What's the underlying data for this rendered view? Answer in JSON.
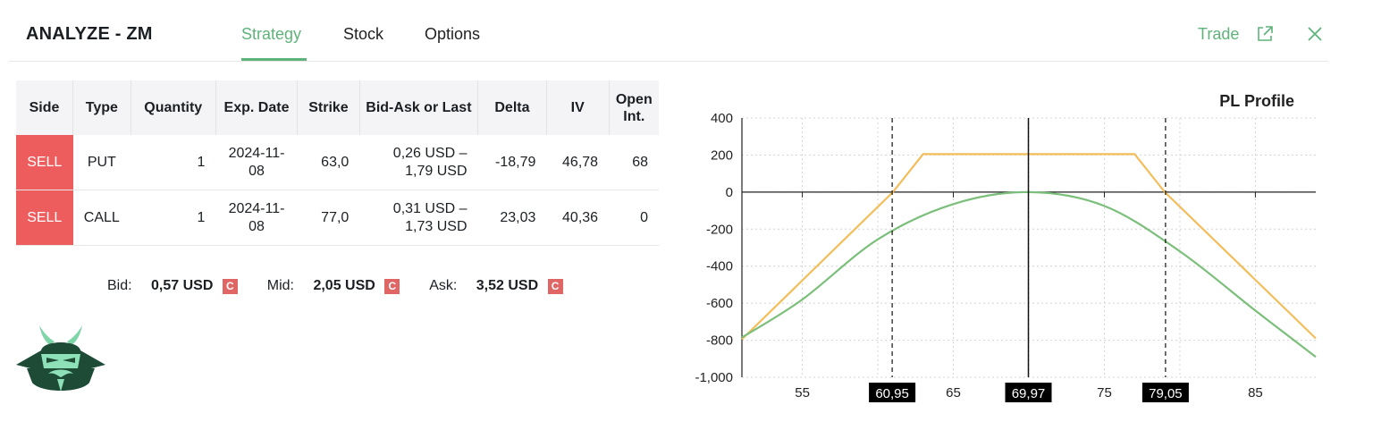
{
  "header": {
    "title": "ANALYZE - ZM",
    "tabs": [
      {
        "label": "Strategy",
        "active": true
      },
      {
        "label": "Stock",
        "active": false
      },
      {
        "label": "Options",
        "active": false
      }
    ],
    "trade_label": "Trade",
    "accent_color": "#5fb37a"
  },
  "table": {
    "columns": [
      "Side",
      "Type",
      "Quantity",
      "Exp. Date",
      "Strike",
      "Bid-Ask or Last",
      "Delta",
      "IV",
      "Open Int."
    ],
    "rows": [
      {
        "side": "SELL",
        "type": "PUT",
        "quantity": "1",
        "exp_date": "2024-11-08",
        "strike": "63,0",
        "bid_ask": "0,26 USD – 1,79 USD",
        "delta": "-18,79",
        "iv": "46,78",
        "open_int": "68"
      },
      {
        "side": "SELL",
        "type": "CALL",
        "quantity": "1",
        "exp_date": "2024-11-08",
        "strike": "77,0",
        "bid_ask": "0,31 USD – 1,73 USD",
        "delta": "23,03",
        "iv": "40,36",
        "open_int": "0"
      }
    ]
  },
  "prices": {
    "bid_label": "Bid:",
    "bid_value": "0,57 USD",
    "mid_label": "Mid:",
    "mid_value": "2,05 USD",
    "ask_label": "Ask:",
    "ask_value": "3,52 USD",
    "badge": "C"
  },
  "chart_data": {
    "type": "line",
    "title": "PL Profile",
    "xlim": [
      51,
      89
    ],
    "ylim": [
      -1000,
      400
    ],
    "x_ticks": [
      "55",
      "65",
      "75",
      "85"
    ],
    "x_tick_values": [
      55,
      65,
      75,
      85
    ],
    "y_ticks": [
      "400",
      "200",
      "0",
      "-200",
      "-400",
      "-600",
      "-800",
      "-1,000"
    ],
    "y_tick_values": [
      400,
      200,
      0,
      -200,
      -400,
      -600,
      -800,
      -1000
    ],
    "grid": true,
    "markers": [
      {
        "x": 60.95,
        "label": "60,95",
        "style": "dashed"
      },
      {
        "x": 69.97,
        "label": "69,97",
        "style": "solid"
      },
      {
        "x": 79.05,
        "label": "79,05",
        "style": "dashed"
      }
    ],
    "series": [
      {
        "color": "#f2bd5a",
        "x": [
          51,
          61,
          63,
          77,
          79,
          89
        ],
        "y": [
          -795,
          0,
          205,
          205,
          0,
          -790
        ]
      },
      {
        "color": "#7bbf7b",
        "x": [
          51,
          55,
          60,
          65,
          70,
          75,
          80,
          85,
          89
        ],
        "y": [
          -785,
          -580,
          -255,
          -65,
          0,
          -75,
          -320,
          -640,
          -890
        ]
      }
    ]
  }
}
